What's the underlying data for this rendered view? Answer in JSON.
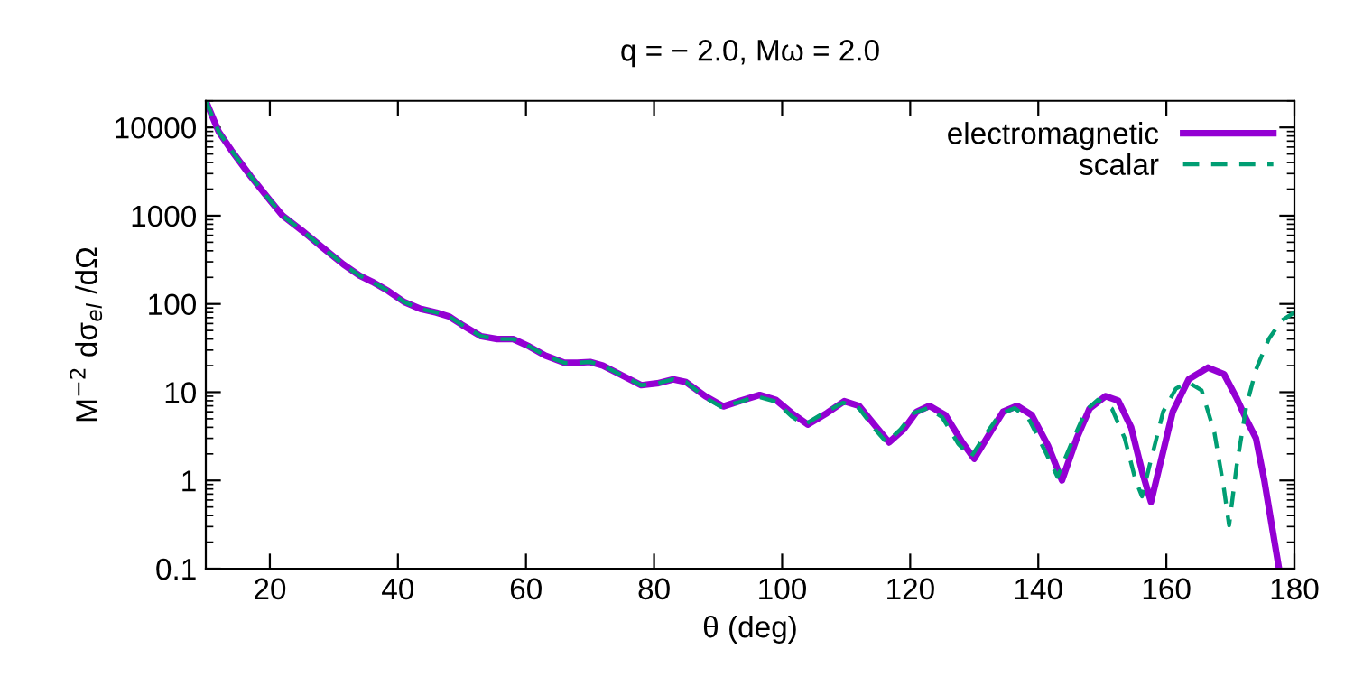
{
  "chart_data": {
    "type": "line",
    "title": "q = − 2.0, Mω = 2.0",
    "xlabel": "θ (deg)",
    "ylabel": "M$^{−2}$ dσ$_{el}$ /dΩ",
    "log": "y",
    "xlim": [
      10,
      180
    ],
    "ylim": [
      0.1,
      20000
    ],
    "xticks": [
      20,
      40,
      60,
      80,
      100,
      120,
      140,
      160,
      180
    ],
    "yticks": [
      0.1,
      1,
      10,
      100,
      1000,
      10000
    ],
    "grid": false,
    "legend": "top right",
    "series": [
      {
        "name": "electromagnetic",
        "color": "#9400d3",
        "line_style": "solid",
        "x": [
          10,
          12,
          14,
          17,
          20,
          22,
          25,
          28,
          31.5,
          34,
          36,
          38.5,
          41,
          43.5,
          46,
          48,
          50,
          53,
          55.5,
          58,
          60.5,
          63,
          66,
          68,
          70,
          72,
          75,
          78,
          80.5,
          83,
          85,
          88,
          90.8,
          93.5,
          96.5,
          99,
          101.5,
          104,
          107,
          109.7,
          112,
          114.5,
          116.7,
          119,
          121,
          123,
          125.5,
          128,
          130,
          132.5,
          134.5,
          136.7,
          139,
          141.5,
          143.7,
          146,
          148,
          150.5,
          152.5,
          154.5,
          156.3,
          157.6,
          159,
          161,
          163.5,
          166.5,
          169,
          171,
          172.5,
          174,
          175.3,
          176.5,
          177.6
        ],
        "values": [
          20000,
          9000,
          5500,
          2800,
          1500,
          1000,
          680,
          450,
          280,
          210,
          178,
          140,
          105,
          88,
          80,
          72,
          58,
          43,
          40,
          40,
          33,
          26,
          21.5,
          21.5,
          22,
          20,
          15.5,
          12,
          12.6,
          14,
          13,
          9,
          6.9,
          8,
          9.3,
          8.2,
          5.8,
          4.3,
          5.8,
          7.9,
          7,
          4.2,
          2.7,
          3.8,
          6,
          7,
          5.5,
          2.8,
          1.76,
          3.5,
          6,
          7,
          5.5,
          2.5,
          1.0,
          3,
          6.5,
          9,
          8,
          4,
          1.2,
          0.57,
          1.5,
          6,
          14,
          19,
          16,
          8.5,
          4.9,
          3,
          1,
          0.3,
          0.1
        ]
      },
      {
        "name": "scalar",
        "color": "#009e73",
        "line_style": "dashed",
        "x": [
          10,
          12,
          14,
          17,
          20,
          22,
          25,
          28,
          31.5,
          34,
          36,
          38.5,
          41,
          43.5,
          46,
          48,
          50,
          53,
          55.5,
          58,
          60.5,
          63,
          66,
          68,
          70,
          72,
          75,
          78,
          80.5,
          83,
          85,
          88,
          90.5,
          93.5,
          96,
          99,
          101.5,
          103.5,
          106.5,
          109.5,
          112,
          114.5,
          116.3,
          118.5,
          120.5,
          122.8,
          125,
          127.5,
          129.5,
          132,
          134,
          136.3,
          138.5,
          141,
          143,
          145.5,
          147.5,
          149.3,
          151.5,
          153.5,
          155.2,
          156.2,
          157.5,
          159.5,
          161.5,
          163.4,
          165.5,
          167.5,
          169,
          169.8,
          171,
          172.5,
          174,
          176,
          178,
          180
        ],
        "values": [
          20000,
          9000,
          5500,
          2800,
          1500,
          1000,
          680,
          450,
          280,
          210,
          178,
          140,
          105,
          88,
          80,
          72,
          58,
          43,
          40,
          40,
          33,
          26,
          21.5,
          21.5,
          22,
          20,
          15.5,
          12,
          12.6,
          14,
          13,
          8.7,
          6.8,
          7.8,
          9,
          7.8,
          5.3,
          4.3,
          5.8,
          7.6,
          6.6,
          3.8,
          2.7,
          3.8,
          5.8,
          6.6,
          5.2,
          2.6,
          1.85,
          3.5,
          5.6,
          6.6,
          5,
          2.2,
          1.1,
          3,
          6.3,
          8.2,
          6.5,
          3,
          1,
          0.66,
          1.6,
          6,
          11,
          13,
          10.5,
          3.5,
          0.8,
          0.31,
          1.5,
          7,
          18,
          40,
          65,
          80
        ]
      }
    ]
  }
}
